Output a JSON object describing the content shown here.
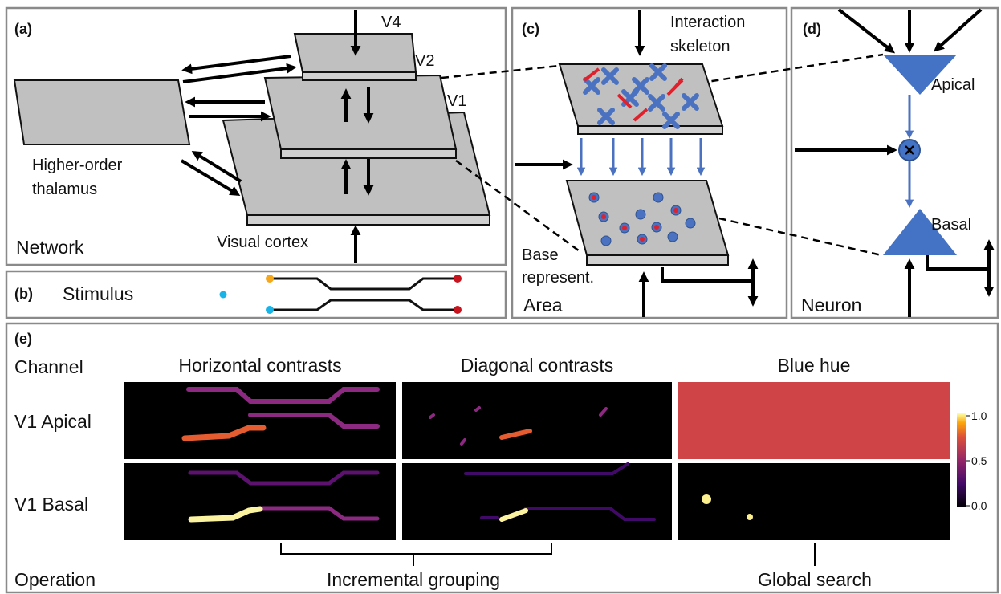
{
  "panels": {
    "a": {
      "label": "(a)",
      "areas": [
        "V4",
        "V2",
        "V1"
      ],
      "thalamus": [
        "Higher-order",
        "thalamus"
      ],
      "cortex": "Visual cortex",
      "caption": "Network"
    },
    "b": {
      "label": "(b)",
      "caption": "Stimulus"
    },
    "c": {
      "label": "(c)",
      "skeleton": [
        "Interaction",
        "skeleton"
      ],
      "base": [
        "Base",
        "represent."
      ],
      "caption": "Area"
    },
    "d": {
      "label": "(d)",
      "apical": "Apical",
      "basal": "Basal",
      "caption": "Neuron"
    },
    "e": {
      "label": "(e)",
      "channel_header": "Channel",
      "channels": [
        "Horizontal contrasts",
        "Diagonal contrasts",
        "Blue hue"
      ],
      "rows": [
        "V1 Apical",
        "V1 Basal"
      ],
      "operation_header": "Operation",
      "operations": [
        "Incremental grouping",
        "Global search"
      ],
      "colorbar_ticks": [
        "1.0",
        "0.5",
        "0.0"
      ]
    }
  }
}
